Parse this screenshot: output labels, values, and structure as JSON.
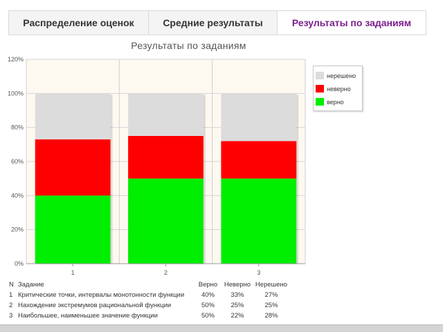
{
  "tabs": [
    {
      "label": "Распределение оценок"
    },
    {
      "label": "Средние результаты"
    },
    {
      "label": "Результаты по заданиям"
    }
  ],
  "colors": {
    "unsolved": "#dcdcdc",
    "wrong": "#ff0000",
    "correct": "#00ee00",
    "active_tab": "#7b1f8e",
    "plot_background": "#fdf9f1"
  },
  "chart_data": {
    "type": "bar",
    "stacked": true,
    "title": "Результаты по заданиям",
    "categories": [
      "1",
      "2",
      "3"
    ],
    "series": [
      {
        "name": "верно",
        "values": [
          40,
          50,
          50
        ]
      },
      {
        "name": "неверно",
        "values": [
          33,
          25,
          22
        ]
      },
      {
        "name": "нерешено",
        "values": [
          27,
          25,
          28
        ]
      }
    ],
    "ylim": [
      0,
      120
    ],
    "yticks": [
      "0%",
      "20%",
      "40%",
      "60%",
      "80%",
      "100%",
      "120%"
    ],
    "grid": true,
    "legend_position": "right"
  },
  "legend": [
    {
      "label": "нерешено"
    },
    {
      "label": "неверно"
    },
    {
      "label": "верно"
    }
  ],
  "table": {
    "headers": {
      "n": "N",
      "task": "Задание",
      "correct": "Верно",
      "wrong": "Неверно",
      "unsolved": "Нерешено"
    },
    "rows": [
      {
        "n": "1",
        "task": "Критические точки, интервалы монотонности функции",
        "correct": "40%",
        "wrong": "33%",
        "unsolved": "27%"
      },
      {
        "n": "2",
        "task": "Нахождение экстремумов рациональной функции",
        "correct": "50%",
        "wrong": "25%",
        "unsolved": "25%"
      },
      {
        "n": "3",
        "task": "Наибольшее, наименьшее значение функции",
        "correct": "50%",
        "wrong": "22%",
        "unsolved": "28%"
      }
    ]
  }
}
